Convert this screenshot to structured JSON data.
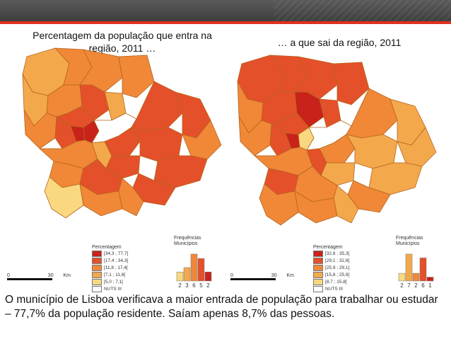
{
  "titles": {
    "left": "Percentagem da população que entra na região, 2011 …",
    "right": "… a que sai da região, 2011"
  },
  "colors": {
    "dark_red": "#c8221a",
    "red": "#e4502a",
    "orange": "#f08838",
    "light_orange": "#f4a84c",
    "yellow": "#fad880",
    "outline": "#b5651d",
    "accent": "#e0301e"
  },
  "legend_left": {
    "title": "Percentagem",
    "classes": [
      {
        "label": "[34,3 ; 77,7]",
        "color": "#c8221a"
      },
      {
        "label": "[17,4 ; 34,3[",
        "color": "#e4502a"
      },
      {
        "label": "[11,8 ; 17,4[",
        "color": "#f08838"
      },
      {
        "label": "[7,1 ; 11,8[",
        "color": "#f4a84c"
      },
      {
        "label": "[5,0 ; 7,1[",
        "color": "#fad880"
      },
      {
        "label": "NUTS III",
        "color": "#ffffff"
      }
    ],
    "freq_title": "Frequências",
    "freq_subtitle": "Municípios",
    "frequencies": [
      2,
      3,
      6,
      5,
      2
    ]
  },
  "legend_right": {
    "title": "Percentagem",
    "classes": [
      {
        "label": "[32,8 ; 35,3]",
        "color": "#c8221a"
      },
      {
        "label": "[29,1 ; 32,8[",
        "color": "#e4502a"
      },
      {
        "label": "[25,9 ; 29,1[",
        "color": "#f08838"
      },
      {
        "label": "[15,8 ; 25,9[",
        "color": "#f4a84c"
      },
      {
        "label": "[8,7 ; 15,8[",
        "color": "#fad880"
      },
      {
        "label": "NUTS III",
        "color": "#ffffff"
      }
    ],
    "freq_title": "Frequências",
    "freq_subtitle": "Municípios",
    "frequencies": [
      2,
      7,
      2,
      6,
      1
    ]
  },
  "scale_left": {
    "start": "0",
    "end": "30",
    "unit": "Km"
  },
  "scale_right": {
    "start": "0",
    "end": "30",
    "unit": "Km"
  },
  "caption": "O município de Lisboa verificava a maior entrada de população para trabalhar ou estudar – 77,7% da população residente. Saíam apenas 8,7% das pessoas."
}
